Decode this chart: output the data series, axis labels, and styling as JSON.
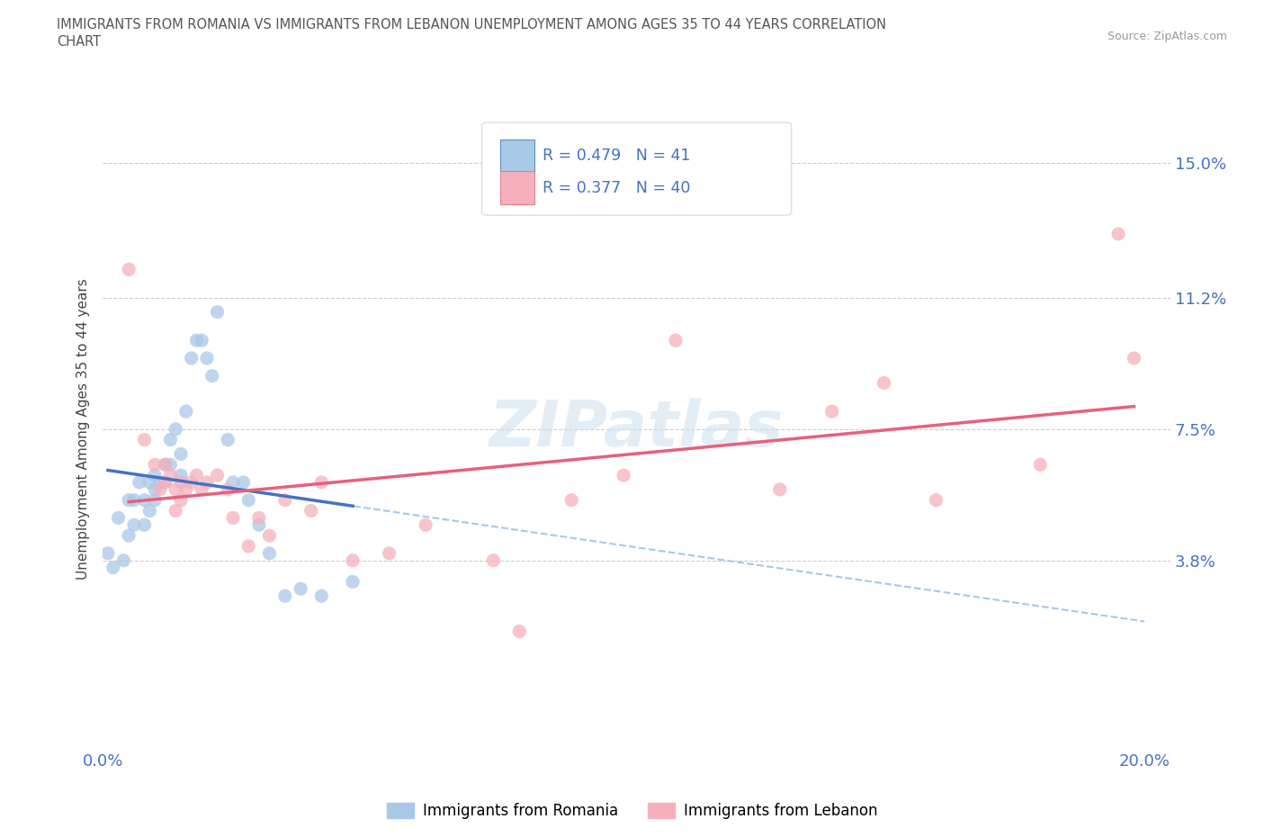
{
  "title_line1": "IMMIGRANTS FROM ROMANIA VS IMMIGRANTS FROM LEBANON UNEMPLOYMENT AMONG AGES 35 TO 44 YEARS CORRELATION",
  "title_line2": "CHART",
  "source": "Source: ZipAtlas.com",
  "ylabel": "Unemployment Among Ages 35 to 44 years",
  "xlim": [
    0.0,
    0.205
  ],
  "ylim": [
    -0.015,
    0.165
  ],
  "xticks": [
    0.0,
    0.05,
    0.1,
    0.15,
    0.2
  ],
  "xtick_labels": [
    "0.0%",
    "",
    "",
    "",
    "20.0%"
  ],
  "ytick_vals": [
    0.038,
    0.075,
    0.112,
    0.15
  ],
  "ytick_labels": [
    "3.8%",
    "7.5%",
    "11.2%",
    "15.0%"
  ],
  "grid_color": "#cccccc",
  "background_color": "#ffffff",
  "watermark": "ZIPatlas",
  "R1": "0.479",
  "N1": "41",
  "R2": "0.377",
  "N2": "40",
  "romania_color": "#a8c8e8",
  "lebanon_color": "#f5b0bc",
  "romania_line_color": "#4472c4",
  "lebanon_line_color": "#e8607a",
  "trend_dash_color": "#a8c8e8",
  "axis_label_color": "#4472c4",
  "title_color": "#555555",
  "romania_x": [
    0.001,
    0.002,
    0.003,
    0.004,
    0.005,
    0.005,
    0.006,
    0.006,
    0.007,
    0.008,
    0.008,
    0.009,
    0.009,
    0.01,
    0.01,
    0.01,
    0.011,
    0.012,
    0.012,
    0.013,
    0.013,
    0.014,
    0.015,
    0.015,
    0.016,
    0.017,
    0.018,
    0.019,
    0.02,
    0.021,
    0.022,
    0.024,
    0.025,
    0.027,
    0.028,
    0.03,
    0.032,
    0.035,
    0.038,
    0.042,
    0.048
  ],
  "romania_y": [
    0.04,
    0.036,
    0.05,
    0.038,
    0.055,
    0.045,
    0.055,
    0.048,
    0.06,
    0.055,
    0.048,
    0.06,
    0.052,
    0.058,
    0.062,
    0.055,
    0.06,
    0.065,
    0.06,
    0.072,
    0.065,
    0.075,
    0.062,
    0.068,
    0.08,
    0.095,
    0.1,
    0.1,
    0.095,
    0.09,
    0.108,
    0.072,
    0.06,
    0.06,
    0.055,
    0.048,
    0.04,
    0.028,
    0.03,
    0.028,
    0.032
  ],
  "lebanon_x": [
    0.005,
    0.008,
    0.01,
    0.011,
    0.012,
    0.012,
    0.013,
    0.014,
    0.014,
    0.015,
    0.015,
    0.016,
    0.017,
    0.018,
    0.019,
    0.02,
    0.022,
    0.024,
    0.025,
    0.028,
    0.03,
    0.032,
    0.035,
    0.04,
    0.042,
    0.048,
    0.055,
    0.062,
    0.075,
    0.08,
    0.09,
    0.1,
    0.11,
    0.13,
    0.14,
    0.15,
    0.16,
    0.18,
    0.195,
    0.198
  ],
  "lebanon_y": [
    0.12,
    0.072,
    0.065,
    0.058,
    0.065,
    0.06,
    0.062,
    0.058,
    0.052,
    0.06,
    0.055,
    0.058,
    0.06,
    0.062,
    0.058,
    0.06,
    0.062,
    0.058,
    0.05,
    0.042,
    0.05,
    0.045,
    0.055,
    0.052,
    0.06,
    0.038,
    0.04,
    0.048,
    0.038,
    0.018,
    0.055,
    0.062,
    0.1,
    0.058,
    0.08,
    0.088,
    0.055,
    0.065,
    0.13,
    0.095
  ]
}
